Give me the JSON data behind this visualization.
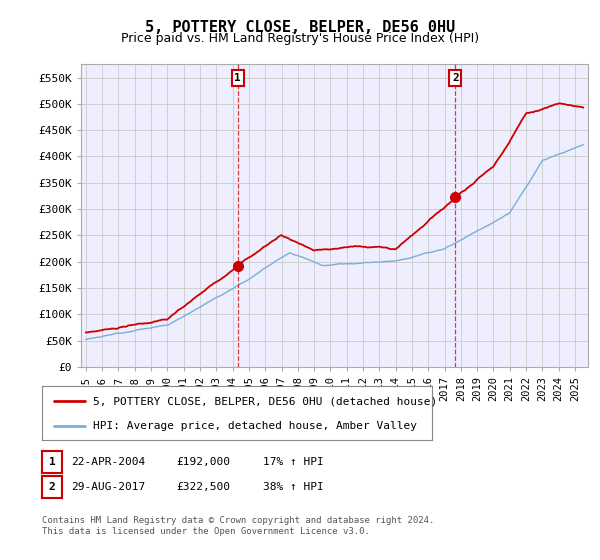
{
  "title": "5, POTTERY CLOSE, BELPER, DE56 0HU",
  "subtitle": "Price paid vs. HM Land Registry's House Price Index (HPI)",
  "title_fontsize": 11,
  "subtitle_fontsize": 9,
  "ylabel_ticks": [
    "£0",
    "£50K",
    "£100K",
    "£150K",
    "£200K",
    "£250K",
    "£300K",
    "£350K",
    "£400K",
    "£450K",
    "£500K",
    "£550K"
  ],
  "ylabel_values": [
    0,
    50000,
    100000,
    150000,
    200000,
    250000,
    300000,
    350000,
    400000,
    450000,
    500000,
    550000
  ],
  "ylim": [
    0,
    575000
  ],
  "xlim_start": 1994.7,
  "xlim_end": 2025.8,
  "x_ticks": [
    1995,
    1996,
    1997,
    1998,
    1999,
    2000,
    2001,
    2002,
    2003,
    2004,
    2005,
    2006,
    2007,
    2008,
    2009,
    2010,
    2011,
    2012,
    2013,
    2014,
    2015,
    2016,
    2017,
    2018,
    2019,
    2020,
    2021,
    2022,
    2023,
    2024,
    2025
  ],
  "sale1_x": 2004.31,
  "sale1_y": 192000,
  "sale1_label": "1",
  "sale1_date": "22-APR-2004",
  "sale1_price": "£192,000",
  "sale1_hpi": "17% ↑ HPI",
  "sale2_x": 2017.66,
  "sale2_y": 322500,
  "sale2_label": "2",
  "sale2_date": "29-AUG-2017",
  "sale2_price": "£322,500",
  "sale2_hpi": "38% ↑ HPI",
  "line_red_color": "#cc0000",
  "line_blue_color": "#7aafd4",
  "grid_color": "#cccccc",
  "background_color": "#ffffff",
  "plot_bg_color": "#eeeeff",
  "legend_line1": "5, POTTERY CLOSE, BELPER, DE56 0HU (detached house)",
  "legend_line2": "HPI: Average price, detached house, Amber Valley",
  "footer": "Contains HM Land Registry data © Crown copyright and database right 2024.\nThis data is licensed under the Open Government Licence v3.0.",
  "marker_box_color": "#cc0000"
}
